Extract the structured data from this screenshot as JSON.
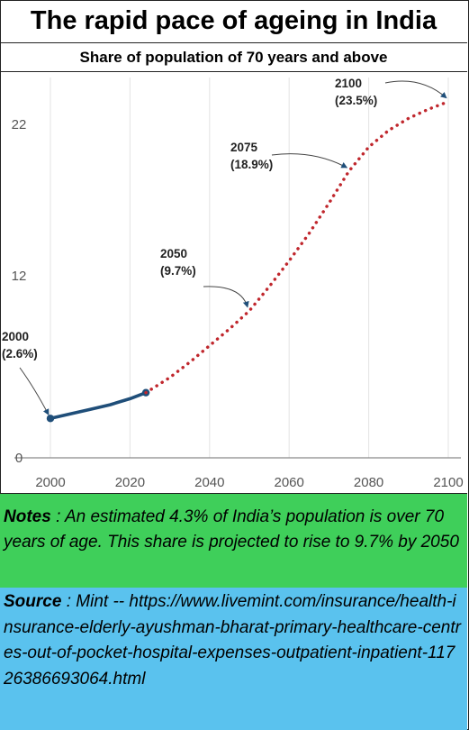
{
  "header": {
    "title": "The rapid pace of ageing in India",
    "subtitle": "Share of population of 70 years and above"
  },
  "chart_data": {
    "type": "line",
    "title": "The rapid pace of ageing in India",
    "subtitle": "Share of population of 70 years and above",
    "xlabel": "",
    "ylabel": "",
    "xlim": [
      1998,
      2103
    ],
    "ylim": [
      0,
      25
    ],
    "x_ticks": [
      2000,
      2020,
      2040,
      2060,
      2080,
      2100
    ],
    "y_ticks": [
      0,
      12,
      22
    ],
    "grid": "vertical",
    "series": [
      {
        "style": "solid",
        "color": "#1f4e79",
        "x": [
          2000,
          2005,
          2010,
          2015,
          2020,
          2024
        ],
        "y": [
          2.6,
          2.9,
          3.2,
          3.5,
          3.9,
          4.3
        ]
      },
      {
        "style": "dotted",
        "color": "#c0272d",
        "x": [
          2024,
          2030,
          2035,
          2040,
          2045,
          2050,
          2055,
          2060,
          2065,
          2070,
          2075,
          2080,
          2085,
          2090,
          2095,
          2100
        ],
        "y": [
          4.3,
          5.3,
          6.3,
          7.4,
          8.5,
          9.7,
          11.3,
          13.0,
          14.8,
          16.8,
          18.9,
          20.5,
          21.6,
          22.4,
          23.0,
          23.5
        ]
      }
    ],
    "annotations": [
      {
        "year": "2000",
        "value": "(2.6%)",
        "x": 2000,
        "y": 2.6
      },
      {
        "year": "2050",
        "value": "(9.7%)",
        "x": 2050,
        "y": 9.7
      },
      {
        "year": "2075",
        "value": "(18.9%)",
        "x": 2075,
        "y": 18.9
      },
      {
        "year": "2100",
        "value": "(23.5%)",
        "x": 2100,
        "y": 23.5
      }
    ]
  },
  "notes": {
    "label": "Notes",
    "text": "An estimated 4.3% of India’s population is over 70 years of age. This share is projected to rise to 9.7% by 2050"
  },
  "source": {
    "label": "Source",
    "text": "Mint -- https://www.livemint.com/insurance/health-insurance-elderly-ayushman-bharat-primary-healthcare-centres-out-of-pocket-hospital-expenses-outpatient-inpatient-11726386693064.html"
  },
  "colors": {
    "notes_bg": "#3fcf5a",
    "source_bg": "#5ac2ee",
    "historic_line": "#1f4e79",
    "projection_line": "#c0272d"
  }
}
